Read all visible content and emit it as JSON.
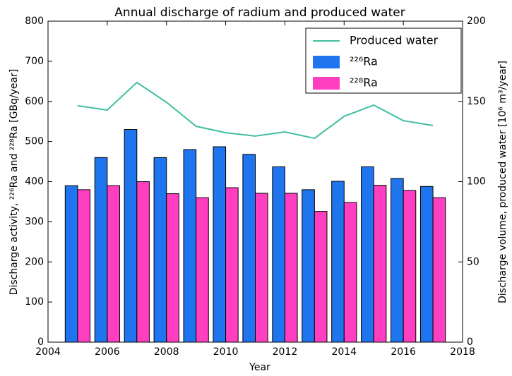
{
  "chart_data": {
    "type": "bar",
    "title": "Annual discharge of radium and produced water",
    "x_label": "Year",
    "y_label": "Discharge activity, ²²⁶Ra and ²²⁸Ra [GBq/year]",
    "y2_label": "Discharge volume, produced water [10⁶ m³/year]",
    "x": [
      2005,
      2006,
      2007,
      2008,
      2009,
      2010,
      2011,
      2012,
      2013,
      2014,
      2015,
      2016,
      2017
    ],
    "series": [
      {
        "name": "Produced water",
        "type": "line",
        "axis": "y2",
        "color": "#40bfa0",
        "values": [
          147.3,
          144.6,
          161.8,
          149.5,
          134.5,
          130.5,
          128.4,
          131,
          127,
          140.7,
          147.7,
          138,
          135
        ]
      },
      {
        "name": "²²⁶Ra",
        "type": "bar",
        "color": "#1f75ee",
        "values": [
          390,
          460,
          530,
          460,
          480,
          487,
          468,
          437,
          380,
          401,
          437,
          408,
          388
        ]
      },
      {
        "name": "²²⁸Ra",
        "type": "bar",
        "color": "#ff3fbf",
        "values": [
          380,
          390,
          400,
          370,
          360,
          385,
          371,
          371,
          326,
          348,
          391,
          378,
          360
        ]
      }
    ],
    "xlim": [
      2004,
      2018
    ],
    "xticks": [
      2004,
      2006,
      2008,
      2010,
      2012,
      2014,
      2016,
      2018
    ],
    "ylim": [
      0,
      800
    ],
    "yticks": [
      0,
      100,
      200,
      300,
      400,
      500,
      600,
      700,
      800
    ],
    "y2lim": [
      0,
      200
    ],
    "y2ticks": [
      0,
      50,
      100,
      150,
      200
    ],
    "legend": "upper right",
    "grid": false
  }
}
